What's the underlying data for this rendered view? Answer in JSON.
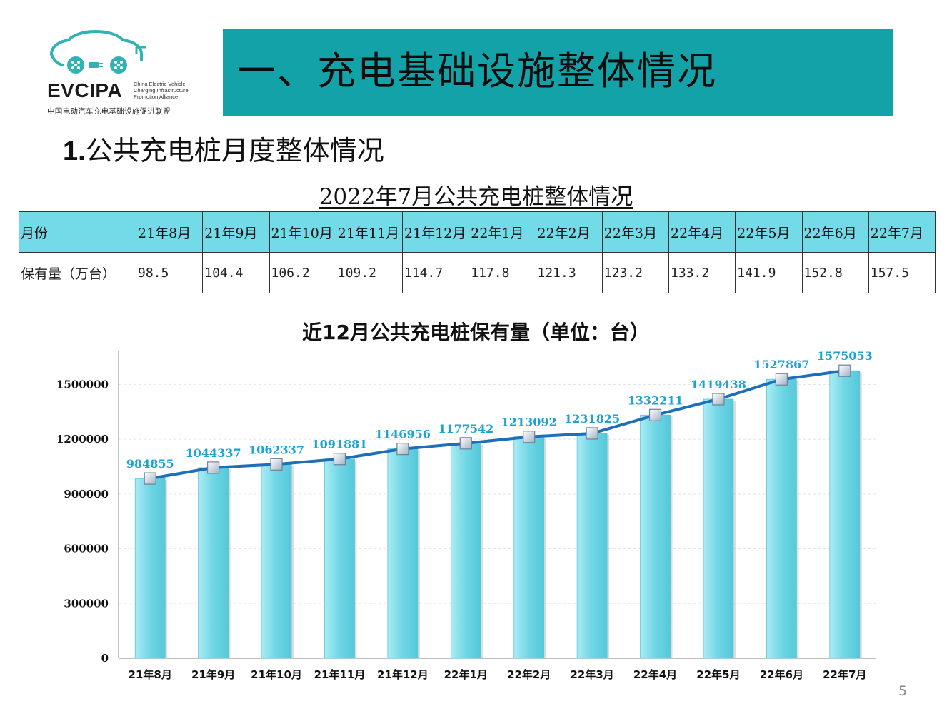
{
  "logo": {
    "abbr": "EVCIPA",
    "en_lines": [
      "China Electric Vehicle",
      "Charging Infrastructure",
      "Promotion Alliance"
    ],
    "cn_name": "中国电动汽车充电基础设施促进联盟"
  },
  "banner": {
    "title": "一、充电基础设施整体情况"
  },
  "section": {
    "number": "1.",
    "title": "公共充电桩月度整体情况"
  },
  "table": {
    "title": "2022年7月公共充电桩整体情况",
    "row_labels": [
      "月份",
      "保有量（万台）"
    ],
    "months": [
      "21年8月",
      "21年9月",
      "21年10月",
      "21年11月",
      "21年12月",
      "22年1月",
      "22年2月",
      "22年3月",
      "22年4月",
      "22年5月",
      "22年6月",
      "22年7月"
    ],
    "values": [
      "98.5",
      "104.4",
      "106.2",
      "109.2",
      "114.7",
      "117.8",
      "121.3",
      "123.2",
      "133.2",
      "141.9",
      "152.8",
      "157.5"
    ]
  },
  "chart_data": {
    "type": "bar",
    "title": "近12月公共充电桩保有量（单位：台）",
    "categories": [
      "21年8月",
      "21年9月",
      "21年10月",
      "21年11月",
      "21年12月",
      "22年1月",
      "22年2月",
      "22年3月",
      "22年4月",
      "22年5月",
      "22年6月",
      "22年7月"
    ],
    "series": [
      {
        "type": "bar",
        "values": [
          984855,
          1044337,
          1062337,
          1091881,
          1146956,
          1177542,
          1213092,
          1231825,
          1332211,
          1419438,
          1527867,
          1575053
        ]
      },
      {
        "type": "line",
        "values": [
          984855,
          1044337,
          1062337,
          1091881,
          1146956,
          1177542,
          1213092,
          1231825,
          1332211,
          1419438,
          1527867,
          1575053
        ]
      }
    ],
    "ylim": [
      0,
      1650000
    ],
    "yticks": [
      0,
      300000,
      600000,
      900000,
      1200000,
      1500000
    ],
    "grid": true,
    "data_labels": true,
    "colors": {
      "bar": "#6fd6e4",
      "line": "#1f6fb8",
      "label": "#1aa3d6"
    }
  },
  "page": {
    "number": "5"
  }
}
